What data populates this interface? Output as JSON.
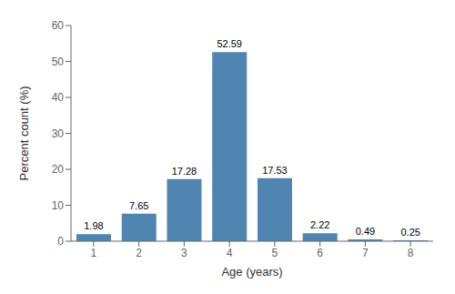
{
  "chart_data": {
    "type": "bar",
    "categories": [
      1,
      2,
      3,
      4,
      5,
      6,
      7,
      8
    ],
    "values": [
      1.98,
      7.65,
      17.28,
      52.59,
      17.53,
      2.22,
      0.49,
      0.25
    ],
    "color": "#4f85b0",
    "xlabel": "Age (years)",
    "ylabel": "Percent count (%)",
    "ylim": [
      0,
      60
    ],
    "yticks": [
      0,
      10,
      20,
      30,
      40,
      50,
      60
    ],
    "grid": false,
    "data_labels": true
  }
}
